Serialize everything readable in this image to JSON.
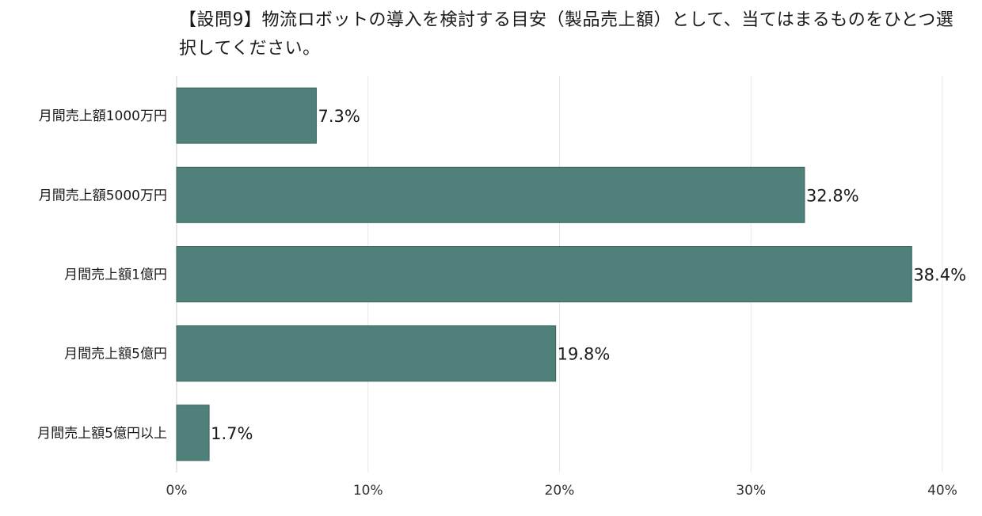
{
  "title": "【設問9】物流ロボットの導入を検討する目安（製品売上額）として、当てはまるものをひとつ選択してください。",
  "colors": {
    "bar": "#4f8079",
    "bar_stroke": "#3b6660",
    "grid": "#e8e8e8",
    "axis": "#cfcfcf"
  },
  "chart_data": {
    "type": "bar",
    "orientation": "horizontal",
    "title": "【設問9】物流ロボットの導入を検討する目安（製品売上額）として、当てはまるものをひとつ選択してください。",
    "categories": [
      "月間売上額1000万円",
      "月間売上額5000万円",
      "月間売上額1億円",
      "月間売上額5億円",
      "月間売上額5億円以上"
    ],
    "values": [
      7.3,
      32.8,
      38.4,
      19.8,
      1.7
    ],
    "value_labels": [
      "7.3%",
      "32.8%",
      "38.4%",
      "19.8%",
      "1.7%"
    ],
    "xlim": [
      0,
      40
    ],
    "xticks": [
      0,
      10,
      20,
      30,
      40
    ],
    "xtick_labels": [
      "0%",
      "10%",
      "20%",
      "30%",
      "40%"
    ],
    "xlabel": "",
    "ylabel": "",
    "grid": true,
    "legend": "none"
  }
}
